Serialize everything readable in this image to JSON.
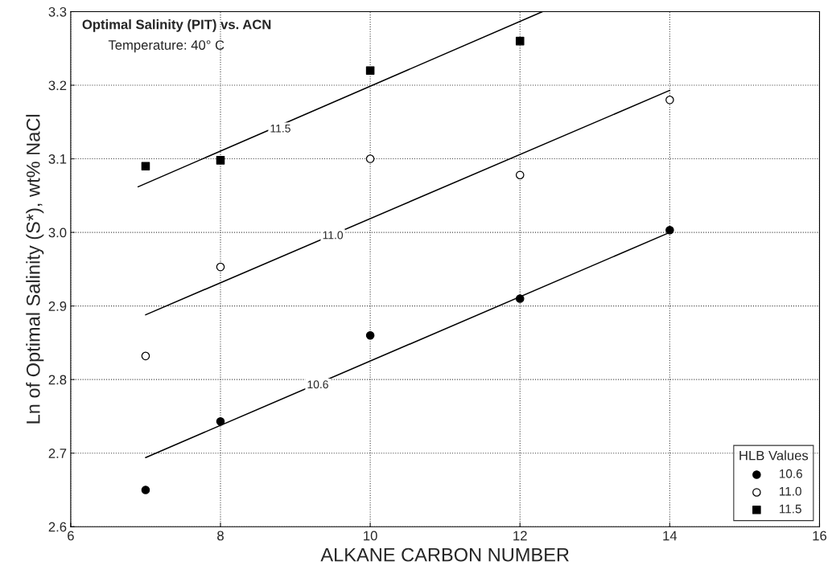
{
  "chart_data": {
    "type": "scatter",
    "title": "Optimal Salinity (PIT) vs. ACN",
    "xlabel": "ALKANE CARBON NUMBER",
    "ylabel": "Ln of Optimal Salinity (S*), wt% NaCl",
    "legend_title": "HLB Values",
    "legend": "bottom right",
    "grid": true,
    "xlim": [
      6,
      16
    ],
    "xticks": [
      6,
      8,
      10,
      12,
      14,
      16
    ],
    "ylim": [
      2.6,
      3.3
    ],
    "yticks": [
      2.6,
      2.7,
      2.8,
      2.9,
      {
        "value": 3.0,
        "label": "3.0"
      },
      3.1,
      3.2,
      3.3
    ],
    "annotations": [
      "Temperature: 40° C",
      {
        "text": "11.5",
        "x": 8.8,
        "y": 3.14
      },
      {
        "text": "11.0",
        "x": 9.5,
        "y": 2.995
      },
      {
        "text": "10.6",
        "x": 9.3,
        "y": 2.792
      }
    ],
    "series": [
      {
        "name": "10.6",
        "color": "#000000",
        "marker": "circle",
        "x": [
          7,
          8,
          10,
          12,
          14
        ],
        "values": [
          2.65,
          2.743,
          2.86,
          2.91,
          3.003
        ]
      },
      {
        "name": "11.0",
        "color": "#ffffff",
        "marker": "circle",
        "x": [
          7,
          8,
          10,
          12,
          14
        ],
        "values": [
          2.832,
          2.953,
          3.1,
          3.078,
          3.18
        ]
      },
      {
        "name": "11.5",
        "color": "#000000",
        "marker": "square",
        "x": [
          7,
          8,
          10,
          12
        ],
        "values": [
          3.09,
          3.098,
          3.22,
          3.26
        ]
      },
      {
        "type": "line",
        "color": "#000000",
        "marker": "none",
        "x": [
          7,
          14
        ],
        "values": [
          2.694,
          3.0
        ]
      },
      {
        "type": "line",
        "color": "#000000",
        "marker": "none",
        "x": [
          7,
          14
        ],
        "values": [
          2.888,
          3.193
        ]
      },
      {
        "type": "line",
        "color": "#000000",
        "marker": "none",
        "x": [
          6.9,
          12.3
        ],
        "values": [
          3.062,
          3.3
        ]
      }
    ]
  }
}
